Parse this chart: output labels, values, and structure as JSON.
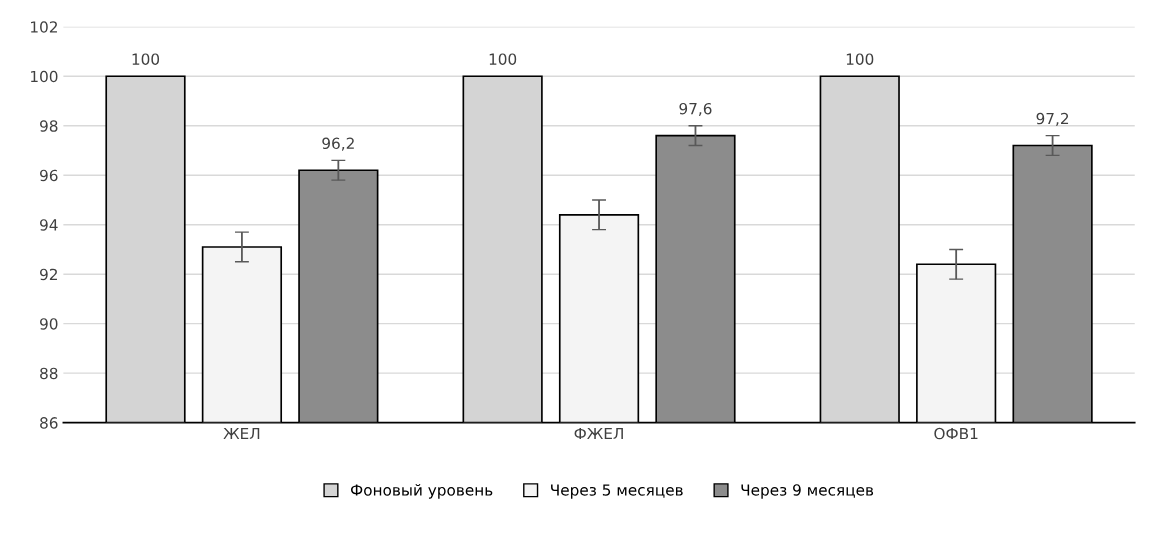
{
  "chart_data": {
    "type": "bar",
    "categories": [
      "ЖЕЛ",
      "ФЖЕЛ",
      "ОФВ1"
    ],
    "series": [
      {
        "name": "Фоновый уровень",
        "color": "#d4d4d4",
        "values": [
          100,
          100,
          100
        ],
        "value_labels": [
          "100",
          "100",
          "100"
        ]
      },
      {
        "name": "Через 5 месяцев",
        "color": "#f4f4f4",
        "values": [
          93.1,
          94.4,
          92.4
        ],
        "errors": [
          0.6,
          0.6,
          0.6
        ]
      },
      {
        "name": "Через 9 месяцев",
        "color": "#8c8c8c",
        "values": [
          96.2,
          97.6,
          97.2
        ],
        "errors": [
          0.4,
          0.4,
          0.4
        ],
        "value_labels": [
          "96,2",
          "97,6",
          "97,2"
        ]
      }
    ],
    "ylim": [
      86,
      102
    ],
    "yticks": [
      86,
      88,
      90,
      92,
      94,
      96,
      98,
      100,
      102
    ],
    "grid": "y",
    "legend": "bottom"
  }
}
